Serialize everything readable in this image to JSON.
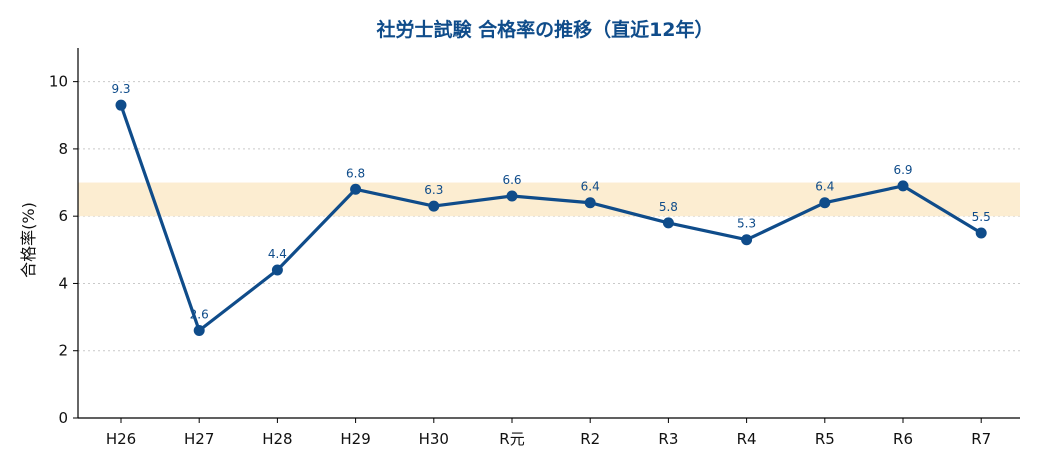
{
  "chart_data": {
    "type": "line",
    "title": "社労士試験 合格率の推移（直近12年）",
    "xlabel": "",
    "ylabel": "合格率(%)",
    "categories": [
      "H26",
      "H27",
      "H28",
      "H29",
      "H30",
      "R元",
      "R2",
      "R3",
      "R4",
      "R5",
      "R6",
      "R7"
    ],
    "series": [
      {
        "values": [
          9.3,
          2.6,
          4.4,
          6.8,
          6.3,
          6.6,
          6.4,
          5.8,
          5.3,
          6.4,
          6.9,
          5.5
        ]
      }
    ],
    "data_labels": [
      "9.3",
      "2.6",
      "4.4",
      "6.8",
      "6.3",
      "6.6",
      "6.4",
      "5.8",
      "5.3",
      "6.4",
      "6.9",
      "5.5"
    ],
    "ylim": [
      0,
      11
    ],
    "yticks": [
      0,
      2,
      4,
      6,
      8,
      10
    ],
    "band": [
      6,
      7
    ],
    "grid": "horizontal-dotted",
    "colors": {
      "line": "#0f4c8a",
      "band": "#fcebcc",
      "title": "#0f4c8a"
    }
  }
}
